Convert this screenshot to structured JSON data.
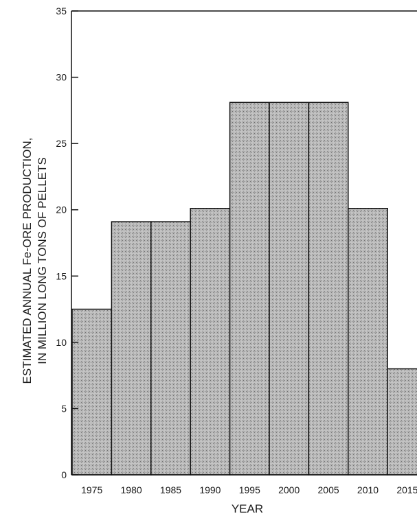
{
  "chart_data": {
    "type": "bar",
    "categories": [
      "1975",
      "1980",
      "1985",
      "1990",
      "1995",
      "2000",
      "2005",
      "2010",
      "2015"
    ],
    "values": [
      12.5,
      19.1,
      19.1,
      20.1,
      28.1,
      28.1,
      28.1,
      20.1,
      8.0
    ],
    "xlabel": "YEAR",
    "ylabel_line1": "ESTIMATED ANNUAL Fe-ORE PRODUCTION,",
    "ylabel_line2": "IN MILLION LONG TONS OF PELLETS",
    "ylim": [
      0,
      35
    ],
    "yticks": [
      "0",
      "5",
      "10",
      "15",
      "20",
      "25",
      "30",
      "35"
    ],
    "grid": false,
    "legend": "none",
    "colors": {
      "bar_fill": "#b5b5b5",
      "bar_edge": "#111111",
      "axis": "#111111"
    }
  }
}
